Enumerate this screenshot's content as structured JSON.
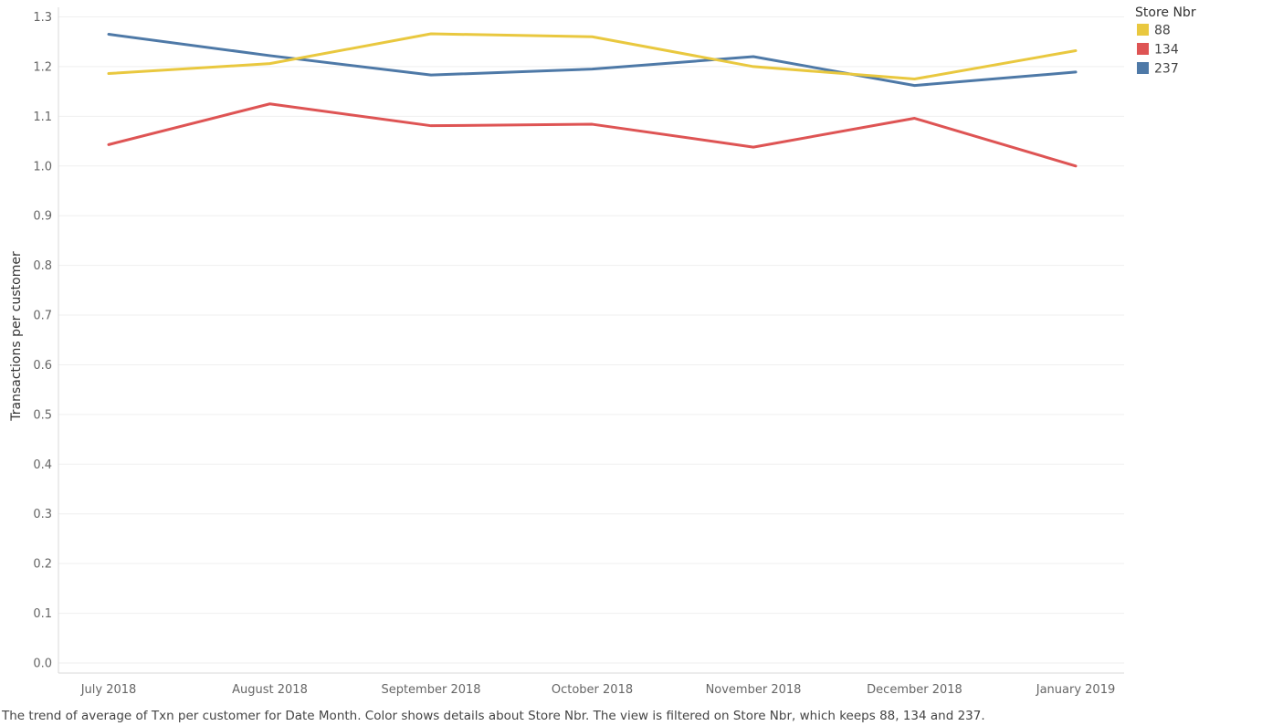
{
  "caption": "The trend of average of Txn per customer for Date Month.  Color shows details about Store Nbr. The view is filtered on Store Nbr, which keeps 88, 134 and 237.",
  "chart_data": {
    "type": "line",
    "title": "",
    "xlabel": "",
    "ylabel": "Transactions per customer",
    "categories": [
      "July 2018",
      "August 2018",
      "September 2018",
      "October 2018",
      "November 2018",
      "December 2018",
      "January 2019"
    ],
    "ylim": [
      0,
      1.3
    ],
    "yticks": [
      "0.0",
      "0.1",
      "0.2",
      "0.3",
      "0.4",
      "0.5",
      "0.6",
      "0.7",
      "0.8",
      "0.9",
      "1.0",
      "1.1",
      "1.2",
      "1.3"
    ],
    "grid": true,
    "legend": {
      "title": "Store Nbr",
      "placement": "top-right"
    },
    "series": [
      {
        "name": "88",
        "color": "#e9c83f",
        "values": [
          1.186,
          1.206,
          1.266,
          1.26,
          1.2,
          1.175,
          1.232
        ]
      },
      {
        "name": "134",
        "color": "#de5454",
        "values": [
          1.043,
          1.125,
          1.081,
          1.084,
          1.038,
          1.096,
          1.0
        ]
      },
      {
        "name": "237",
        "color": "#4e79a7",
        "values": [
          1.265,
          1.222,
          1.183,
          1.195,
          1.22,
          1.162,
          1.189
        ]
      }
    ]
  }
}
